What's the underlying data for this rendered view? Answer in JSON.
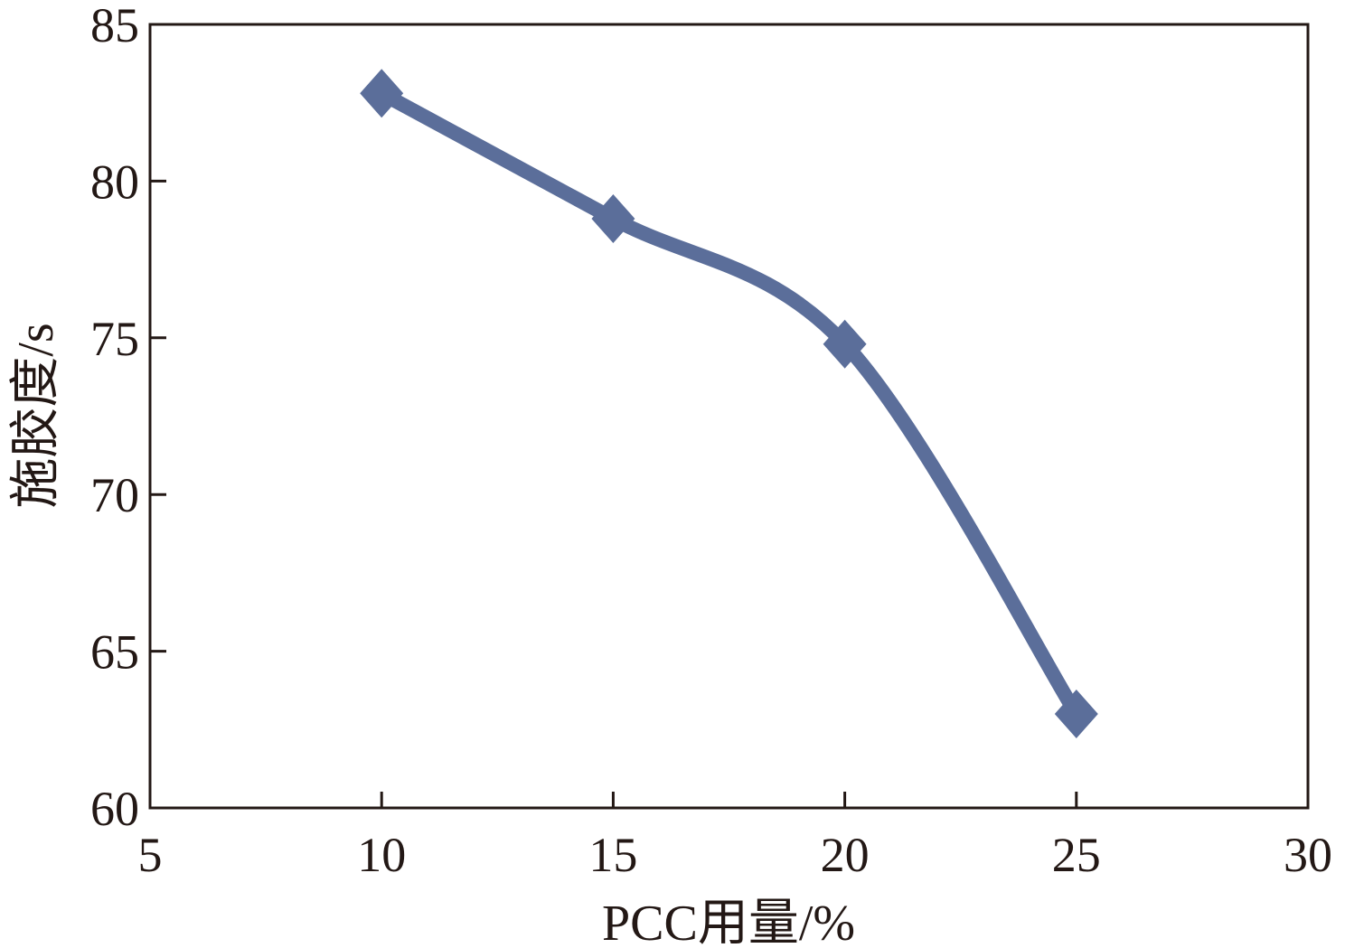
{
  "chart_data": {
    "type": "line",
    "title": "",
    "xlabel": "PCC用量/%",
    "ylabel": "施胶度/s",
    "xlim": [
      5,
      30
    ],
    "ylim": [
      60,
      85
    ],
    "xticks": [
      "5",
      "10",
      "15",
      "20",
      "25",
      "30"
    ],
    "yticks": [
      "60",
      "65",
      "70",
      "75",
      "80",
      "85"
    ],
    "grid": false,
    "legend": "none",
    "marker": "diamond",
    "smooth": true,
    "series": [
      {
        "x": [
          10,
          15,
          20,
          25
        ],
        "y": [
          82.8,
          78.8,
          74.8,
          63.0
        ],
        "color": "#5b6e9a"
      }
    ]
  }
}
